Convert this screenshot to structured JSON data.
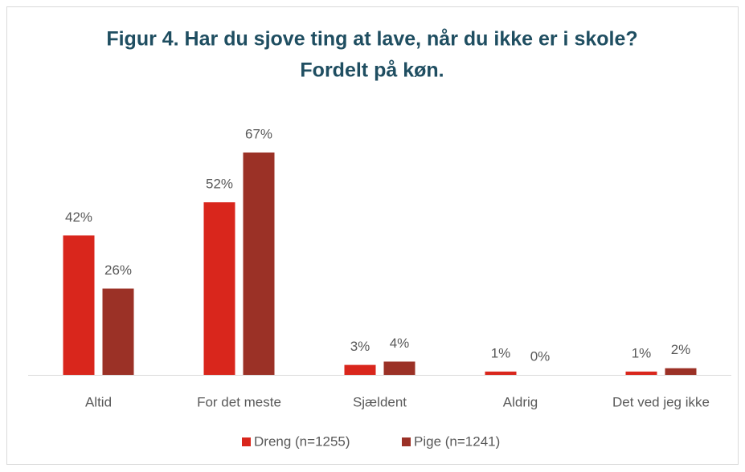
{
  "chart_data": {
    "type": "bar",
    "title": [
      "Figur 4. Har du sjove ting at lave, når du ikke er i skole?",
      "Fordelt på køn."
    ],
    "categories": [
      "Altid",
      "For det meste",
      "Sjældent",
      "Aldrig",
      "Det ved jeg ikke"
    ],
    "series": [
      {
        "name": "Dreng (n=1255)",
        "color": "#d9261c",
        "values": [
          42,
          52,
          3,
          1,
          1
        ],
        "value_labels": [
          "42%",
          "52%",
          "3%",
          "1%",
          "1%"
        ]
      },
      {
        "name": "Pige (n=1241)",
        "color": "#9b3126",
        "values": [
          26,
          67,
          4,
          0,
          2
        ],
        "value_labels": [
          "26%",
          "67%",
          "4%",
          "0%",
          "2%"
        ]
      }
    ],
    "legend": "bottom"
  }
}
